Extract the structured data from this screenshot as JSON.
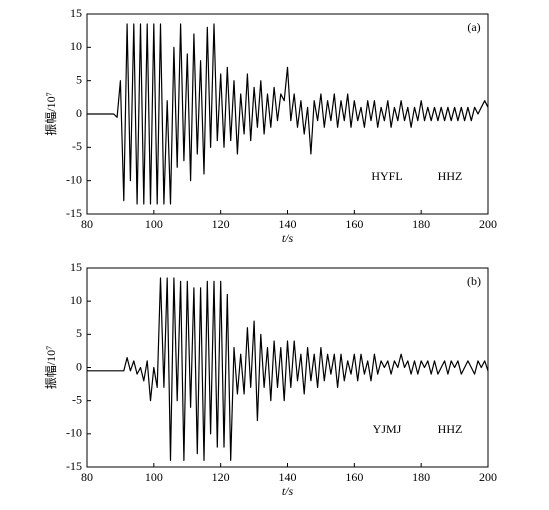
{
  "chart_data": [
    {
      "type": "line",
      "annotations": [
        "(a)",
        "HYFL",
        "HHZ"
      ],
      "xlabel": "t/s",
      "ylabel": "振幅/10⁷",
      "xlim": [
        80,
        200
      ],
      "ylim": [
        -15,
        15
      ],
      "xticks": [
        80,
        100,
        120,
        140,
        160,
        180,
        200
      ],
      "yticks": [
        -15,
        -10,
        -5,
        0,
        5,
        10,
        15
      ],
      "x": [
        80,
        81,
        82,
        83,
        84,
        85,
        86,
        87,
        88,
        89,
        90,
        91,
        92,
        93,
        94,
        95,
        96,
        97,
        98,
        99,
        100,
        101,
        102,
        103,
        104,
        105,
        106,
        107,
        108,
        109,
        110,
        111,
        112,
        113,
        114,
        115,
        116,
        117,
        118,
        119,
        120,
        121,
        122,
        123,
        124,
        125,
        126,
        127,
        128,
        129,
        130,
        131,
        132,
        133,
        134,
        135,
        136,
        137,
        138,
        139,
        140,
        141,
        142,
        143,
        144,
        145,
        146,
        147,
        148,
        149,
        150,
        151,
        152,
        153,
        154,
        155,
        156,
        157,
        158,
        159,
        160,
        161,
        162,
        163,
        164,
        165,
        166,
        167,
        168,
        169,
        170,
        171,
        172,
        173,
        174,
        175,
        176,
        177,
        178,
        179,
        180,
        181,
        182,
        183,
        184,
        185,
        186,
        187,
        188,
        189,
        190,
        191,
        192,
        193,
        194,
        195,
        196,
        197,
        198,
        199,
        200
      ],
      "series": [
        {
          "color": "#000000",
          "values": [
            0,
            0,
            0,
            0,
            0,
            0,
            0,
            0,
            0,
            -0.5,
            5,
            -13,
            13.5,
            -10,
            13.5,
            -13.5,
            13.5,
            -13.5,
            13.5,
            -13.5,
            13.5,
            -13.5,
            13.5,
            -13.5,
            2,
            -13.5,
            10,
            -8,
            13.5,
            -7,
            9,
            -10,
            12,
            -6,
            8,
            -9,
            13,
            -5,
            13.5,
            -4,
            6,
            -5,
            7,
            -4,
            5,
            -6,
            3,
            -3,
            6,
            -4,
            4,
            -2,
            5,
            -3,
            3,
            -2,
            4,
            -1,
            3,
            2,
            7,
            -1,
            3,
            -2,
            2,
            -3,
            1,
            -6,
            2,
            -1,
            3,
            -2,
            2,
            -1,
            3,
            -2,
            2,
            -1,
            3,
            -2,
            2,
            -1,
            1,
            -2,
            2,
            -1,
            2,
            -2,
            1,
            -1,
            2,
            -2,
            1,
            -1,
            2,
            -1,
            1,
            -2,
            1,
            -1,
            2,
            -1,
            1,
            -1,
            1,
            -1,
            1,
            -1,
            1,
            -1,
            1,
            -1,
            1,
            -1,
            1,
            -1,
            1,
            0,
            1,
            2,
            1
          ]
        }
      ]
    },
    {
      "type": "line",
      "annotations": [
        "(b)",
        "YJMJ",
        "HHZ"
      ],
      "xlabel": "t/s",
      "ylabel": "振幅/10⁷",
      "xlim": [
        80,
        200
      ],
      "ylim": [
        -15,
        15
      ],
      "xticks": [
        80,
        100,
        120,
        140,
        160,
        180,
        200
      ],
      "yticks": [
        -15,
        -10,
        -5,
        0,
        5,
        10,
        15
      ],
      "x": [
        80,
        81,
        82,
        83,
        84,
        85,
        86,
        87,
        88,
        89,
        90,
        91,
        92,
        93,
        94,
        95,
        96,
        97,
        98,
        99,
        100,
        101,
        102,
        103,
        104,
        105,
        106,
        107,
        108,
        109,
        110,
        111,
        112,
        113,
        114,
        115,
        116,
        117,
        118,
        119,
        120,
        121,
        122,
        123,
        124,
        125,
        126,
        127,
        128,
        129,
        130,
        131,
        132,
        133,
        134,
        135,
        136,
        137,
        138,
        139,
        140,
        141,
        142,
        143,
        144,
        145,
        146,
        147,
        148,
        149,
        150,
        151,
        152,
        153,
        154,
        155,
        156,
        157,
        158,
        159,
        160,
        161,
        162,
        163,
        164,
        165,
        166,
        167,
        168,
        169,
        170,
        171,
        172,
        173,
        174,
        175,
        176,
        177,
        178,
        179,
        180,
        181,
        182,
        183,
        184,
        185,
        186,
        187,
        188,
        189,
        190,
        191,
        192,
        193,
        194,
        195,
        196,
        197,
        198,
        199,
        200
      ],
      "series": [
        {
          "color": "#000000",
          "values": [
            -0.5,
            -0.5,
            -0.5,
            -0.5,
            -0.5,
            -0.5,
            -0.5,
            -0.5,
            -0.5,
            -0.5,
            -0.5,
            -0.5,
            1.5,
            -0.5,
            1,
            -1,
            0,
            -2,
            1,
            -5,
            0,
            -3,
            13.5,
            -3,
            13.5,
            -14,
            13.5,
            -5,
            13,
            -14,
            13,
            -6,
            12,
            -13,
            12,
            -14,
            13,
            -10,
            13,
            -12,
            13,
            -12,
            11,
            -14,
            3,
            -4,
            2,
            -4,
            6,
            -3,
            7,
            -8,
            5,
            -3,
            3,
            -5,
            4,
            -3,
            3,
            -5,
            4,
            -3,
            4,
            -2,
            2,
            -4,
            3,
            -2,
            2,
            -3,
            3,
            -2,
            2,
            -1,
            2,
            -3,
            2,
            -2,
            1,
            -1,
            2,
            -2,
            2,
            -1,
            1,
            -2,
            2,
            -1,
            1,
            0,
            1,
            -1,
            1,
            0,
            2,
            0,
            1,
            -1,
            1,
            -1,
            1,
            0,
            1,
            -1,
            1,
            -1,
            0,
            1,
            -1,
            1,
            0,
            1,
            -1,
            0,
            1,
            0,
            -1,
            1,
            0,
            1,
            -0.5
          ]
        }
      ]
    }
  ]
}
